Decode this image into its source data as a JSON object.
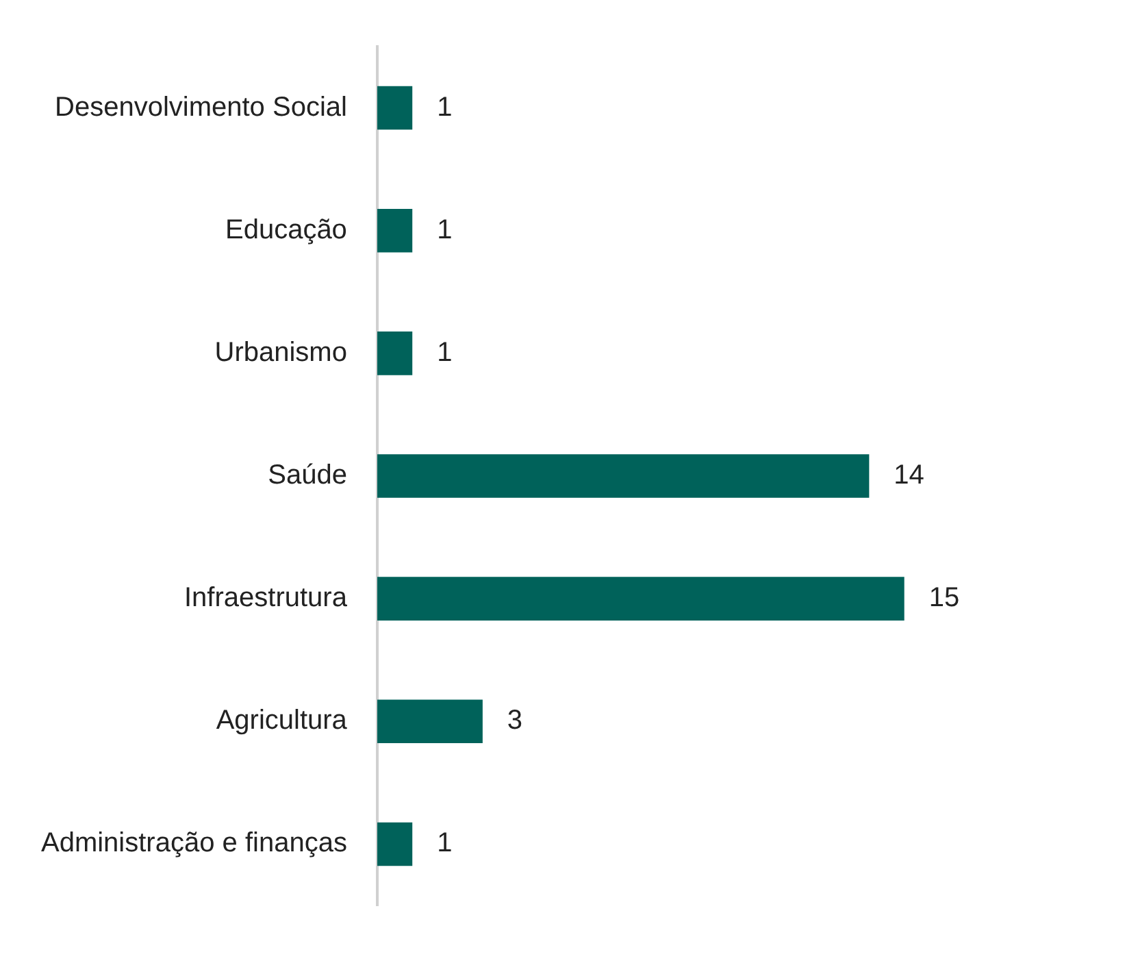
{
  "chart_data": {
    "type": "bar",
    "orientation": "horizontal",
    "categories": [
      "Desenvolvimento Social",
      "Educação",
      "Urbanismo",
      "Saúde",
      "Infraestrutura",
      "Agricultura",
      "Administração e finanças"
    ],
    "values": [
      1,
      1,
      1,
      14,
      15,
      3,
      1
    ],
    "color": "#00625a",
    "data_labels": true,
    "legend": false
  }
}
